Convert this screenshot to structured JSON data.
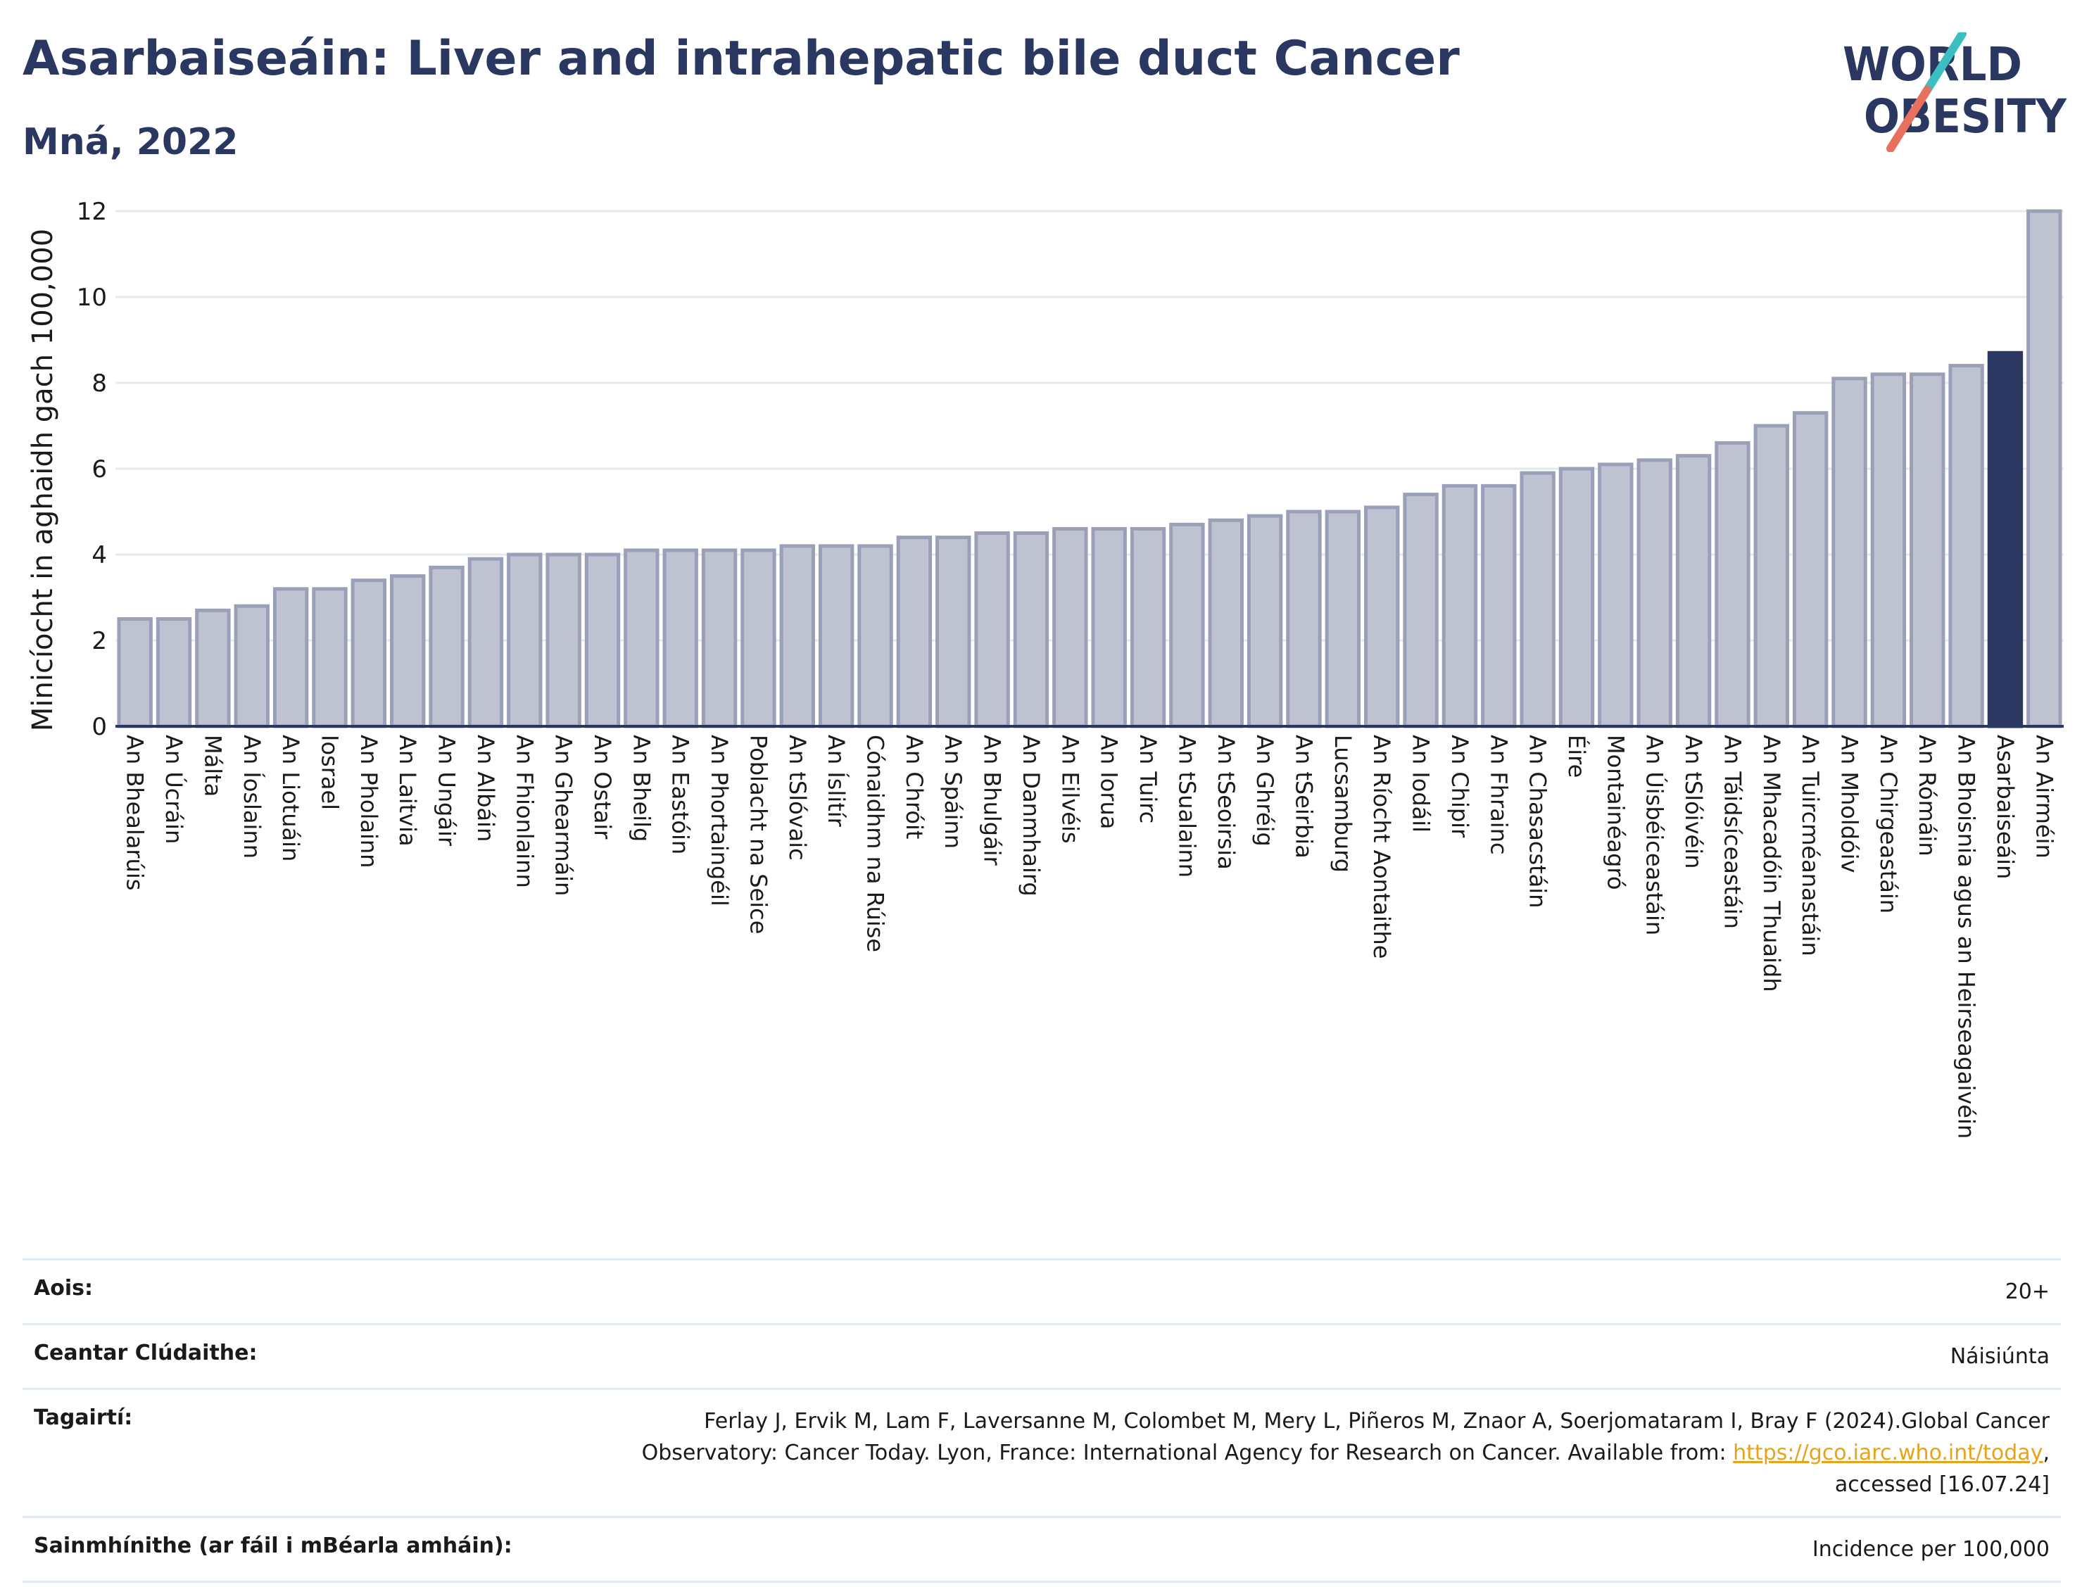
{
  "header": {
    "title": "Asarbaiseáin: Liver and intrahepatic bile duct Cancer",
    "subtitle": "Mná, 2022"
  },
  "logo": {
    "line1": "WORLD",
    "line2": "OBESITY",
    "colors": {
      "text": "#2a3760",
      "slash_top": "#3bbfc1",
      "slash_bottom": "#e8705f"
    }
  },
  "colors": {
    "bar": "#bfc3d1",
    "bar_border": "#9aa0b8",
    "highlight": "#2a3760",
    "grid": "#e6e9ef",
    "axis": "#2a3760"
  },
  "chart_data": {
    "type": "bar",
    "ylabel": "Minicíocht in aghaidh gach 100,000",
    "ylim": [
      0,
      12
    ],
    "yticks": [
      0,
      2,
      4,
      6,
      8,
      10,
      12
    ],
    "grid": true,
    "highlight": "Asarbaiseáin",
    "categories": [
      "An Bhealarúis",
      "An Úcráin",
      "Málta",
      "An Íoslainn",
      "An Liotuáin",
      "Iosrael",
      "An Pholainn",
      "An Laitvia",
      "An Ungáir",
      "An Albáin",
      "An Fhionlainn",
      "An Ghearmáin",
      "An Ostair",
      "An Bheilg",
      "An Eastóin",
      "An Phortaingéil",
      "Poblacht na Seice",
      "An tSlóvaic",
      "An Íslitír",
      "Cónaidhm na Rúise",
      "An Chróit",
      "An Spáinn",
      "An Bhulgáir",
      "An Danmhairg",
      "An Eilvéis",
      "An Iorua",
      "An Tuirc",
      "An tSualainn",
      "An tSeoirsia",
      "An Ghréig",
      "An tSeirbia",
      "Lucsamburg",
      "An Ríocht Aontaithe",
      "An Iodáil",
      "An Chipir",
      "An Fhrainc",
      "An Chasacstáin",
      "Éire",
      "Montainéagró",
      "An Úisbéiceastáin",
      "An tSlóivéin",
      "An Táidsíceastáin",
      "An Mhacadóin Thuaidh",
      "An Tuircméanastáin",
      "An Mholdóiv",
      "An Chirgeastáin",
      "An Rómáin",
      "An Bhoisnia agus an Heirseagaivéin",
      "Asarbaiseáin",
      "An Airméin"
    ],
    "values": [
      2.5,
      2.5,
      2.7,
      2.8,
      3.2,
      3.2,
      3.4,
      3.5,
      3.7,
      3.9,
      4.0,
      4.0,
      4.0,
      4.1,
      4.1,
      4.1,
      4.1,
      4.2,
      4.2,
      4.2,
      4.4,
      4.4,
      4.5,
      4.5,
      4.6,
      4.6,
      4.6,
      4.7,
      4.8,
      4.9,
      5.0,
      5.0,
      5.1,
      5.4,
      5.6,
      5.6,
      5.9,
      6.0,
      6.1,
      6.2,
      6.3,
      6.6,
      7.0,
      7.3,
      8.1,
      8.2,
      8.2,
      8.4,
      8.7,
      12.0
    ]
  },
  "info": {
    "rows": [
      {
        "label": "Aois:",
        "value": "20+"
      },
      {
        "label": "Ceantar Clúdaithe:",
        "value": "Náisiúnta"
      },
      {
        "label": "Tagairtí:",
        "value_pre": "Ferlay J, Ervik M, Lam F, Laversanne M, Colombet M, Mery L, Piñeros M, Znaor A, Soerjomataram I, Bray F (2024).Global Cancer Observatory: Cancer Today. Lyon, France: International Agency for Research on Cancer. Available from: ",
        "link": "https://gco.iarc.who.int/today",
        "value_post": ", accessed [16.07.24]"
      },
      {
        "label": "Sainmhínithe (ar fáil i mBéarla amháin):",
        "value": "Incidence per 100,000"
      }
    ]
  }
}
